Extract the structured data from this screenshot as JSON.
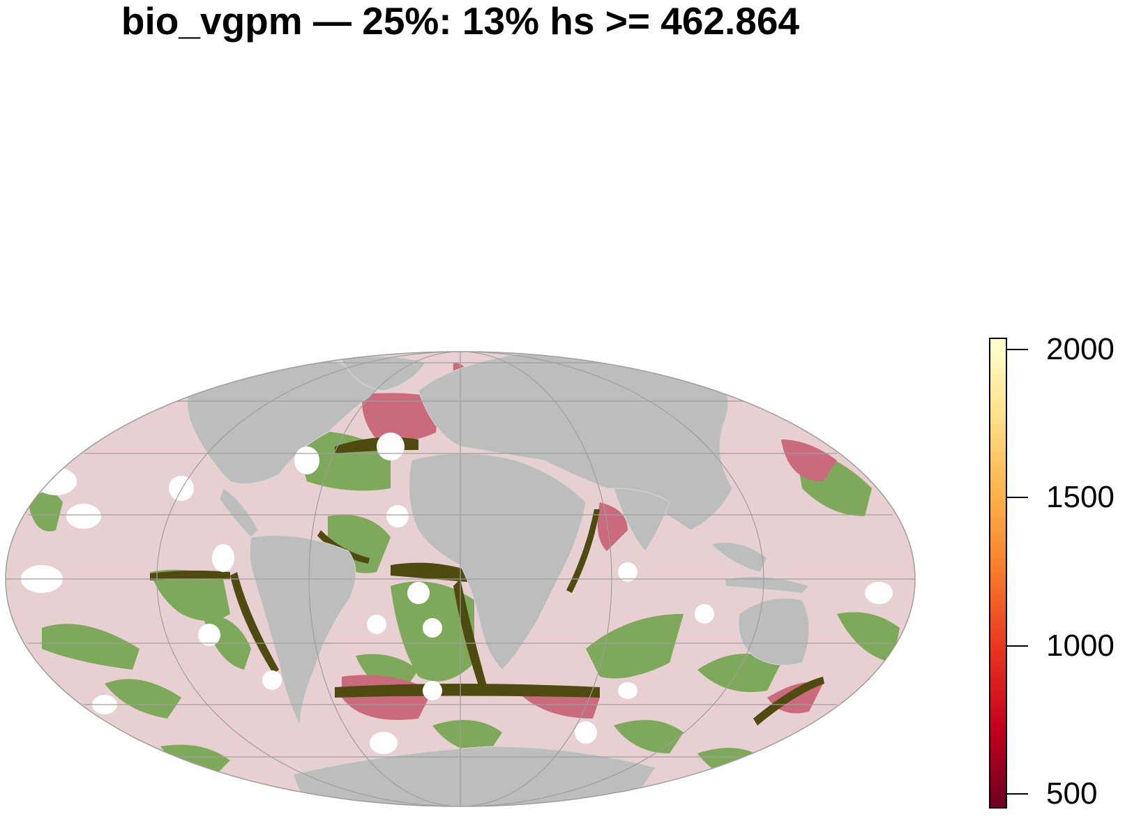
{
  "title": "bio_vgpm — 25%: 13% hs >= 462.864",
  "legend": {
    "ticks": [
      "2000",
      "1500",
      "1000",
      "500"
    ],
    "values": [
      2000,
      1500,
      1000,
      500
    ],
    "range": [
      450,
      2040
    ],
    "colors": [
      "#6b0020",
      "#c4001e",
      "#e8331f",
      "#f77a2b",
      "#fbb24a",
      "#fde08a",
      "#ffffd0"
    ]
  },
  "map": {
    "projection": "mollweide",
    "land_color": "#bdbdbd",
    "ocean_low_color": "#e8cfd2",
    "habitat_color": "#7ea85a",
    "hotspot_color": "#c96b7d",
    "hotspot_dark_color": "#4e4a10",
    "graticule_color": "#9e9e9e"
  }
}
